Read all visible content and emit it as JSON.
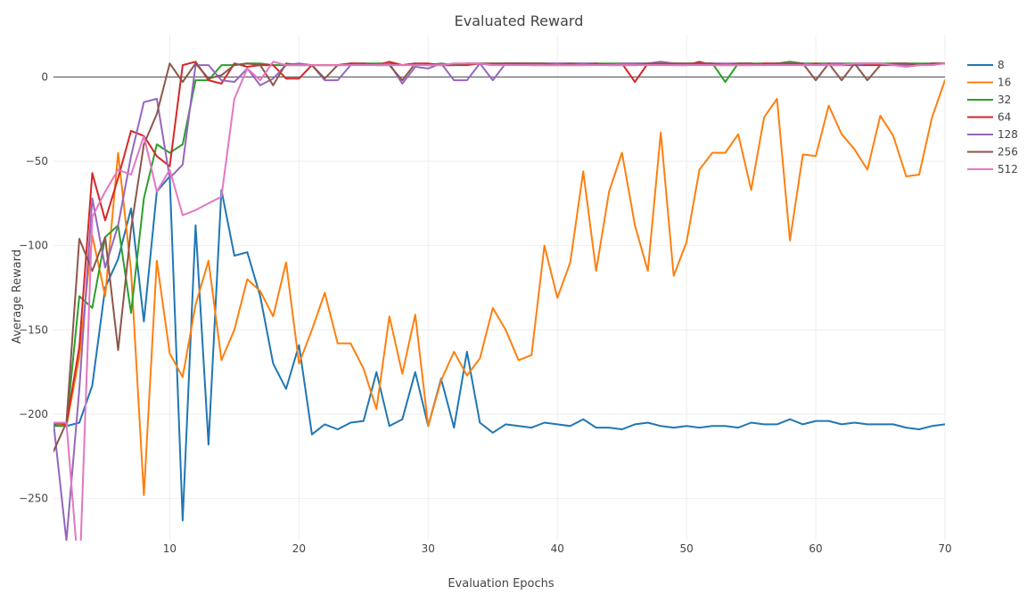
{
  "chart_data": {
    "type": "line",
    "title": "Evaluated Reward",
    "xlabel": "Evaluation Epochs",
    "ylabel": "Average Reward",
    "xlim": [
      1,
      70
    ],
    "ylim": [
      -275,
      25
    ],
    "x_ticks": [
      10,
      20,
      30,
      40,
      50,
      60,
      70
    ],
    "y_ticks": [
      0,
      -50,
      -100,
      -150,
      -200,
      -250
    ],
    "grid": true,
    "legend_position": "top-right",
    "x": [
      1,
      2,
      3,
      4,
      5,
      6,
      7,
      8,
      9,
      10,
      11,
      12,
      13,
      14,
      15,
      16,
      17,
      18,
      19,
      20,
      21,
      22,
      23,
      24,
      25,
      26,
      27,
      28,
      29,
      30,
      31,
      32,
      33,
      34,
      35,
      36,
      37,
      38,
      39,
      40,
      41,
      42,
      43,
      44,
      45,
      46,
      47,
      48,
      49,
      50,
      51,
      52,
      53,
      54,
      55,
      56,
      57,
      58,
      59,
      60,
      61,
      62,
      63,
      64,
      65,
      66,
      67,
      68,
      69,
      70
    ],
    "series": [
      {
        "name": "8",
        "color": "#1f77b4",
        "values": [
          -206,
          -207,
          -205,
          -183,
          -125,
          -108,
          -78,
          -145,
          -68,
          -59,
          -263,
          -88,
          -218,
          -67,
          -106,
          -104,
          -130,
          -170,
          -185,
          -159,
          -212,
          -206,
          -209,
          -205,
          -204,
          -175,
          -207,
          -203,
          -175,
          -207,
          -179,
          -208,
          -163,
          -205,
          -211,
          -206,
          -207,
          -208,
          -205,
          -206,
          -207,
          -203,
          -208,
          -208,
          -209,
          -206,
          -205,
          -207,
          -208,
          -207,
          -208,
          -207,
          -207,
          -208,
          -205,
          -206,
          -206,
          -203,
          -206,
          -204,
          -204,
          -206,
          -205,
          -206,
          -206,
          -206,
          -208,
          -209,
          -207,
          -206
        ]
      },
      {
        "name": "16",
        "color": "#ff7f0e",
        "values": [
          -205,
          -207,
          -166,
          -94,
          -130,
          -45,
          -115,
          -248,
          -109,
          -164,
          -178,
          -135,
          -109,
          -168,
          -150,
          -120,
          -127,
          -142,
          -110,
          -170,
          -150,
          -128,
          -158,
          -158,
          -173,
          -197,
          -142,
          -176,
          -141,
          -207,
          -180,
          -163,
          -177,
          -167,
          -137,
          -150,
          -168,
          -165,
          -100,
          -131,
          -110,
          -56,
          -115,
          -68,
          -45,
          -88,
          -115,
          -33,
          -118,
          -98,
          -55,
          -45,
          -45,
          -34,
          -67,
          -24,
          -13,
          -97,
          -46,
          -47,
          -17,
          -34,
          -43,
          -55,
          -23,
          -35,
          -59,
          -58,
          -24,
          -2
        ]
      },
      {
        "name": "32",
        "color": "#2ca02c",
        "values": [
          -207,
          -207,
          -130,
          -137,
          -95,
          -88,
          -140,
          -72,
          -40,
          -45,
          -40,
          -2,
          -2,
          7,
          7,
          8,
          8,
          7,
          7,
          7,
          7,
          7,
          7,
          8,
          8,
          8,
          8,
          7,
          8,
          7,
          8,
          7,
          8,
          8,
          8,
          8,
          8,
          8,
          8,
          8,
          8,
          8,
          8,
          8,
          8,
          8,
          8,
          8,
          8,
          8,
          8,
          8,
          -3,
          8,
          8,
          8,
          8,
          9,
          8,
          8,
          8,
          8,
          8,
          8,
          8,
          8,
          8,
          8,
          8,
          8
        ]
      },
      {
        "name": "64",
        "color": "#d62728",
        "values": [
          -205,
          -206,
          -160,
          -57,
          -85,
          -60,
          -32,
          -35,
          -47,
          -53,
          7,
          9,
          -2,
          -4,
          8,
          6,
          7,
          7,
          -1,
          -1,
          7,
          7,
          7,
          8,
          8,
          7,
          9,
          7,
          8,
          8,
          7,
          7,
          7,
          8,
          7,
          8,
          8,
          7,
          7,
          7,
          7,
          7,
          8,
          7,
          8,
          -3,
          8,
          8,
          7,
          7,
          9,
          7,
          7,
          7,
          7,
          8,
          8,
          8,
          7,
          8,
          7,
          7,
          7,
          7,
          7,
          7,
          8,
          7,
          8,
          8
        ]
      },
      {
        "name": "128",
        "color": "#9467bd",
        "values": [
          -205,
          -275,
          -185,
          -72,
          -113,
          -88,
          -47,
          -15,
          -13,
          -60,
          -52,
          7,
          7,
          -2,
          -3,
          5,
          -5,
          -1,
          7,
          8,
          7,
          -2,
          -2,
          7,
          8,
          7,
          8,
          -4,
          6,
          5,
          8,
          -2,
          -2,
          8,
          -2,
          8,
          8,
          8,
          8,
          8,
          8,
          8,
          8,
          7,
          8,
          8,
          8,
          9,
          8,
          7,
          8,
          8,
          8,
          8,
          8,
          7,
          8,
          8,
          8,
          7,
          8,
          8,
          7,
          8,
          8,
          7,
          7,
          7,
          8,
          8
        ]
      },
      {
        "name": "256",
        "color": "#8c564b",
        "values": [
          -222,
          -205,
          -96,
          -115,
          -95,
          -162,
          -90,
          -40,
          -22,
          8,
          -3,
          8,
          -1,
          1,
          7,
          8,
          7,
          -5,
          8,
          7,
          7,
          -1,
          7,
          7,
          8,
          7,
          7,
          -2,
          8,
          7,
          7,
          7,
          8,
          8,
          8,
          8,
          8,
          8,
          8,
          7,
          8,
          7,
          8,
          7,
          7,
          7,
          8,
          8,
          8,
          8,
          8,
          8,
          7,
          8,
          8,
          7,
          8,
          8,
          8,
          -2,
          8,
          -2,
          8,
          -2,
          7,
          8,
          8,
          7,
          8,
          8
        ]
      },
      {
        "name": "512",
        "color": "#e377c2",
        "values": [
          -205,
          -205,
          -300,
          -83,
          -68,
          -55,
          -58,
          -35,
          -68,
          -55,
          -82,
          -79,
          -75,
          -71,
          -13,
          5,
          -2,
          9,
          7,
          7,
          7,
          7,
          7,
          7,
          7,
          7,
          7,
          7,
          7,
          7,
          7,
          8,
          8,
          8,
          7,
          7,
          7,
          7,
          7,
          7,
          7,
          7,
          7,
          7,
          7,
          7,
          7,
          7,
          7,
          7,
          7,
          7,
          7,
          7,
          7,
          7,
          7,
          7,
          7,
          7,
          7,
          7,
          8,
          8,
          8,
          7,
          6,
          7,
          7,
          8
        ]
      }
    ]
  }
}
